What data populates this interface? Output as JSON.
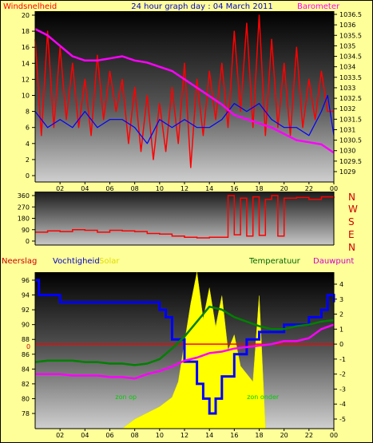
{
  "header": {
    "left_label": "Windsnelheid",
    "title": "24 hour graph day : 04 March 2011",
    "right_label": "Barometer"
  },
  "wind_panel_labels": [
    "N",
    "W",
    "S",
    "E",
    "N"
  ],
  "bottom_labels": {
    "neerslag": "Neerslag",
    "vochtigheid": "Vochtigheid",
    "solar": "Solar",
    "temperatuur": "Temperatuur",
    "dauwpunt": "Dauwpunt",
    "sun_up": "zon op",
    "sun_down": "zon onder",
    "rain_zero": "0"
  },
  "colors": {
    "background": "#ffff99",
    "wind_speed": "#ff0000",
    "wind_avg": "#0000ff",
    "barometer": "#ff00ff",
    "wind_dir": "#ff0000",
    "humidity": "#0000ff",
    "temperature": "#008000",
    "dewpoint": "#ff00ff",
    "solar": "#ffff00",
    "rain": "#ff0000"
  },
  "chart_data": [
    {
      "type": "line",
      "name": "wind-barometer",
      "x_ticks": [
        "02",
        "04",
        "06",
        "08",
        "10",
        "12",
        "14",
        "16",
        "18",
        "20",
        "22",
        "00"
      ],
      "x_range": [
        0,
        24
      ],
      "left_axis": {
        "label": "Windsnelheid",
        "ticks": [
          0,
          2,
          4,
          6,
          8,
          10,
          12,
          14,
          16,
          18,
          20
        ]
      },
      "right_axis": {
        "label": "Barometer",
        "ticks": [
          1029,
          1029.5,
          1030,
          1030.5,
          1031,
          1031.5,
          1032,
          1032.5,
          1033,
          1033.5,
          1034,
          1034.5,
          1035,
          1035.5,
          1036,
          1036.5
        ]
      },
      "series": [
        {
          "name": "Windsnelheid",
          "x": [
            0.0,
            0.5,
            1.0,
            1.5,
            2.0,
            2.5,
            3.0,
            3.5,
            4.0,
            4.5,
            5.0,
            5.5,
            6.0,
            6.5,
            7.0,
            7.5,
            8.0,
            8.5,
            9.0,
            9.5,
            10.0,
            10.5,
            11.0,
            11.5,
            12.0,
            12.5,
            13.0,
            13.5,
            14.0,
            14.5,
            15.0,
            15.5,
            16.0,
            16.5,
            17.0,
            17.5,
            18.0,
            18.5,
            19.0,
            19.5,
            20.0,
            20.5,
            21.0,
            21.5,
            22.0,
            22.5,
            23.0,
            23.5,
            24.0
          ],
          "values": [
            17,
            5,
            18,
            6,
            16,
            7,
            14,
            6,
            12,
            5,
            15,
            7,
            13,
            8,
            12,
            4,
            11,
            3,
            10,
            2,
            9,
            3,
            11,
            4,
            14,
            1,
            12,
            5,
            13,
            7,
            14,
            6,
            18,
            8,
            19,
            6,
            20,
            5,
            17,
            6,
            14,
            5,
            16,
            6,
            12,
            7,
            13,
            8,
            8
          ]
        },
        {
          "name": "Gemiddelde wind",
          "x": [
            0.0,
            1.0,
            2.0,
            3.0,
            4.0,
            5.0,
            6.0,
            7.0,
            8.0,
            9.0,
            10.0,
            11.0,
            12.0,
            13.0,
            14.0,
            15.0,
            16.0,
            17.0,
            18.0,
            19.0,
            20.0,
            21.0,
            22.0,
            23.0,
            23.5,
            24.0
          ],
          "values": [
            8,
            6,
            7,
            6,
            8,
            6,
            7,
            7,
            6,
            4,
            7,
            6,
            7,
            6,
            6,
            7,
            9,
            8,
            9,
            7,
            6,
            6,
            5,
            8,
            10,
            5
          ]
        },
        {
          "name": "Barometer",
          "axis": "right",
          "x": [
            0.0,
            1.0,
            2.0,
            3.0,
            4.0,
            5.0,
            6.0,
            7.0,
            8.0,
            9.0,
            10.0,
            11.0,
            12.0,
            13.0,
            14.0,
            15.0,
            16.0,
            17.0,
            18.0,
            19.0,
            20.0,
            21.0,
            22.0,
            23.0,
            24.0
          ],
          "values": [
            1035.8,
            1035.5,
            1035.0,
            1034.5,
            1034.3,
            1034.3,
            1034.4,
            1034.5,
            1034.3,
            1034.2,
            1034.0,
            1033.8,
            1033.4,
            1033.0,
            1032.6,
            1032.2,
            1031.7,
            1031.5,
            1031.3,
            1031.1,
            1030.8,
            1030.5,
            1030.4,
            1030.3,
            1029.9
          ]
        }
      ]
    },
    {
      "type": "line",
      "name": "wind-direction",
      "x_range": [
        0,
        24
      ],
      "left_axis": {
        "ticks": [
          0,
          90,
          180,
          270,
          360
        ]
      },
      "right_labels": [
        "N",
        "W",
        "S",
        "E",
        "N"
      ],
      "series": [
        {
          "name": "Windrichting",
          "x": [
            0.0,
            1.0,
            2.0,
            3.0,
            4.0,
            5.0,
            6.0,
            7.0,
            8.0,
            9.0,
            10.0,
            11.0,
            12.0,
            13.0,
            14.0,
            15.0,
            15.5,
            16.0,
            16.5,
            17.0,
            17.5,
            18.0,
            18.5,
            19.0,
            19.5,
            20.0,
            21.0,
            22.0,
            23.0,
            24.0
          ],
          "values": [
            70,
            80,
            75,
            90,
            85,
            70,
            85,
            80,
            75,
            60,
            55,
            40,
            30,
            25,
            30,
            30,
            360,
            50,
            340,
            40,
            350,
            45,
            330,
            360,
            40,
            340,
            345,
            330,
            350,
            340
          ]
        }
      ]
    },
    {
      "type": "line",
      "name": "humidity-solar-temperature",
      "x_ticks": [
        "02",
        "04",
        "06",
        "08",
        "10",
        "12",
        "14",
        "16",
        "18",
        "20",
        "22",
        "00"
      ],
      "x_range": [
        0,
        24
      ],
      "left_axis": {
        "label": "Vochtigheid",
        "ticks": [
          78,
          80,
          82,
          84,
          86,
          88,
          90,
          92,
          94,
          96
        ]
      },
      "right_axis": {
        "label": "Temperatuur",
        "ticks": [
          -5,
          -4,
          -3,
          -2,
          -1,
          0,
          1,
          2,
          3,
          4
        ]
      },
      "annotations": [
        "zon op",
        "zon onder"
      ],
      "series": [
        {
          "name": "Vochtigheid",
          "x": [
            0.0,
            0.3,
            1.0,
            2.0,
            3.0,
            4.0,
            5.0,
            6.0,
            7.0,
            8.0,
            9.0,
            10.0,
            10.5,
            11.0,
            12.0,
            13.0,
            13.5,
            14.0,
            14.5,
            15.0,
            16.0,
            17.0,
            18.0,
            19.0,
            20.0,
            21.0,
            22.0,
            23.0,
            23.5,
            24.0
          ],
          "values": [
            96,
            94,
            94,
            93,
            93,
            93,
            93,
            93,
            93,
            93,
            93,
            92,
            91,
            88,
            85,
            82,
            80,
            78,
            80,
            83,
            86,
            88,
            89,
            89,
            90,
            90,
            91,
            92,
            94,
            93
          ]
        },
        {
          "name": "Temperatuur",
          "axis": "right",
          "x": [
            0.0,
            1.0,
            2.0,
            3.0,
            4.0,
            5.0,
            6.0,
            7.0,
            8.0,
            9.0,
            10.0,
            11.0,
            12.0,
            13.0,
            14.0,
            15.0,
            16.0,
            17.0,
            18.0,
            19.0,
            20.0,
            21.0,
            22.0,
            23.0,
            24.0
          ],
          "values": [
            -1.2,
            -1.1,
            -1.1,
            -1.1,
            -1.2,
            -1.2,
            -1.3,
            -1.3,
            -1.4,
            -1.3,
            -1.0,
            -0.3,
            0.5,
            1.5,
            2.5,
            2.3,
            1.8,
            1.5,
            1.2,
            1.0,
            1.0,
            1.2,
            1.3,
            1.5,
            1.6
          ]
        },
        {
          "name": "Dauwpunt",
          "axis": "right",
          "x": [
            0.0,
            1.0,
            2.0,
            3.0,
            4.0,
            5.0,
            6.0,
            7.0,
            8.0,
            9.0,
            10.0,
            11.0,
            12.0,
            13.0,
            14.0,
            15.0,
            16.0,
            17.0,
            18.0,
            19.0,
            20.0,
            21.0,
            22.0,
            23.0,
            24.0
          ],
          "values": [
            -2.0,
            -2.0,
            -2.0,
            -2.1,
            -2.1,
            -2.1,
            -2.2,
            -2.2,
            -2.3,
            -2.0,
            -1.8,
            -1.5,
            -1.1,
            -0.9,
            -0.6,
            -0.5,
            -0.3,
            -0.2,
            -0.1,
            0.0,
            0.2,
            0.2,
            0.4,
            1.0,
            1.3
          ]
        },
        {
          "name": "Solar",
          "x": [
            0.0,
            7.0,
            7.5,
            8.0,
            9.0,
            10.0,
            11.0,
            11.5,
            12.0,
            12.5,
            13.0,
            13.5,
            14.0,
            14.5,
            15.0,
            15.5,
            16.0,
            16.5,
            17.0,
            17.5,
            18.0,
            18.5,
            24.0
          ],
          "values": [
            0,
            0,
            3,
            6,
            10,
            14,
            20,
            30,
            55,
            80,
            100,
            70,
            90,
            65,
            85,
            50,
            60,
            40,
            35,
            30,
            85,
            0,
            0
          ]
        },
        {
          "name": "Neerslag",
          "x": [
            0,
            24
          ],
          "values": [
            0,
            0
          ]
        }
      ]
    }
  ]
}
